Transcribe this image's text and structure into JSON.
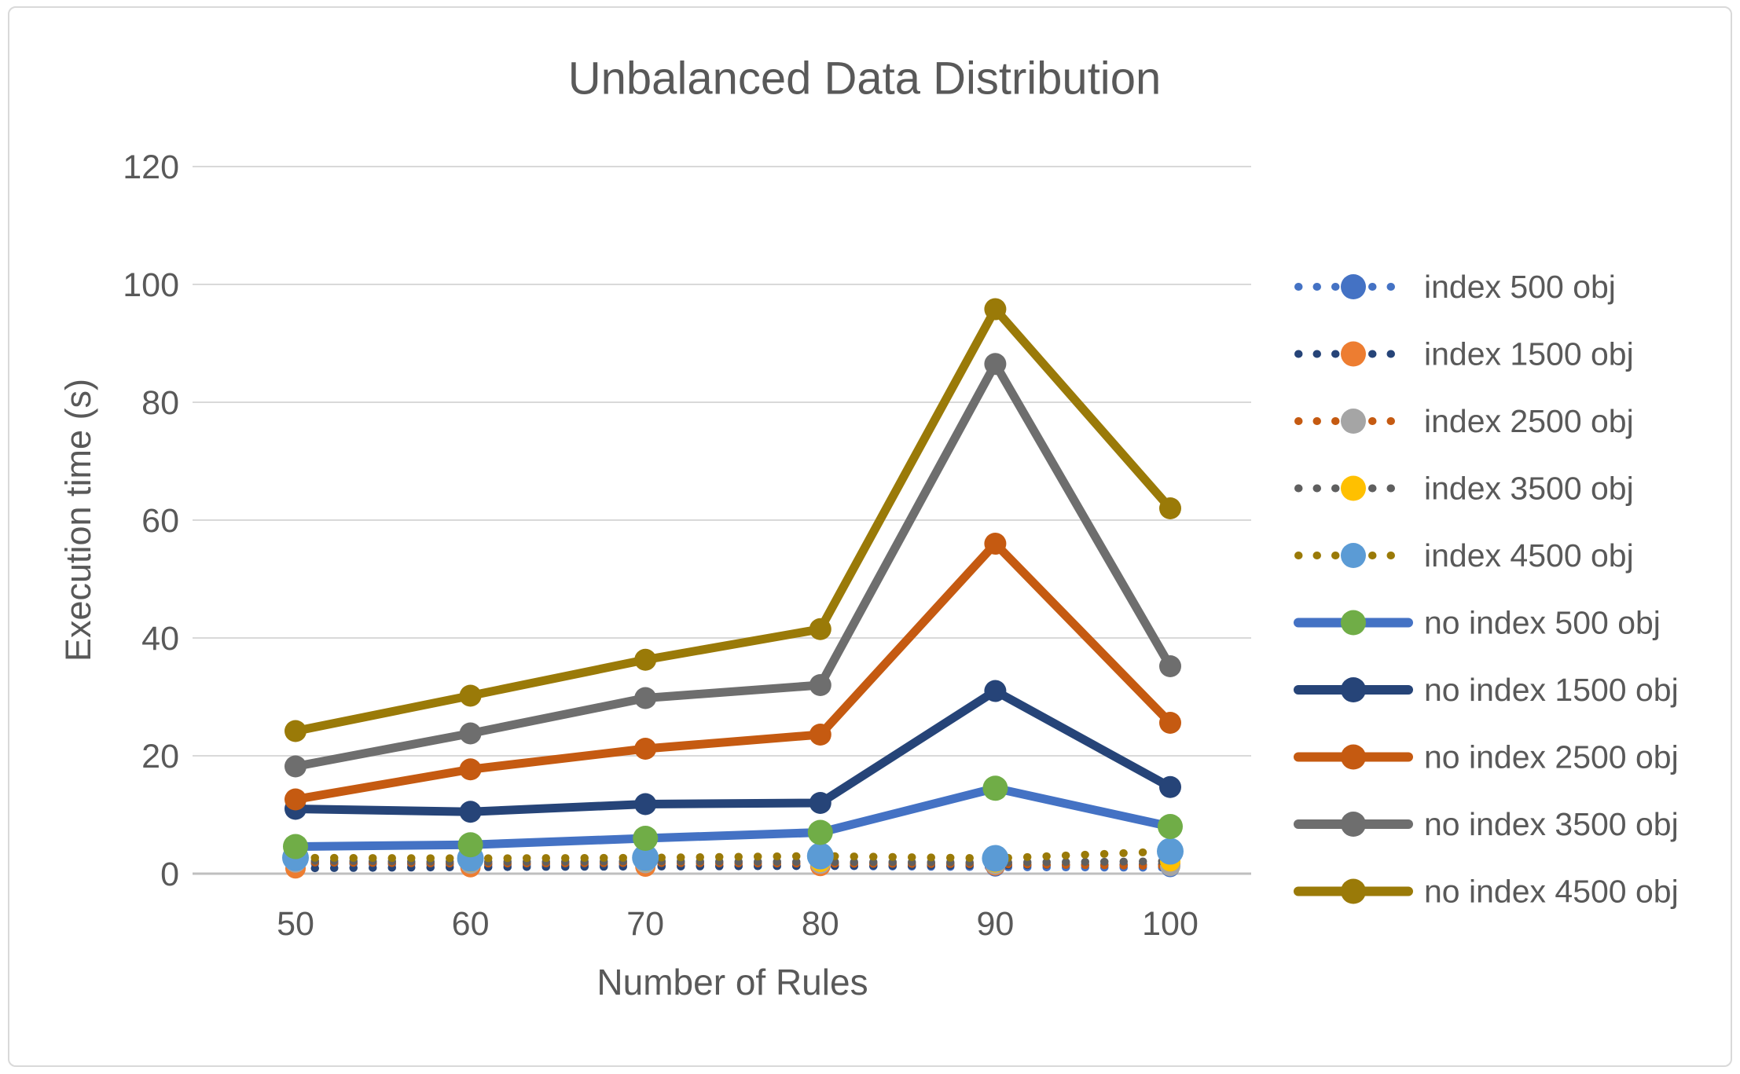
{
  "page": {
    "background": "#ffffff",
    "frame_border_color": "#d9d9d9"
  },
  "chart_data": {
    "type": "line",
    "title": "Unbalanced Data Distribution",
    "xlabel": "Number of Rules",
    "ylabel": "Execution time (s)",
    "x": [
      50,
      60,
      70,
      80,
      90,
      100
    ],
    "xlim": [
      50,
      100
    ],
    "ylim": [
      0,
      120
    ],
    "yticks": [
      0,
      20,
      40,
      60,
      80,
      100,
      120
    ],
    "grid": true,
    "gridline_color": "#d9d9d9",
    "axis_line_color": "#bfbfbf",
    "text_color": "#595959",
    "legend_position": "right",
    "series": [
      {
        "name": "index 500 obj",
        "style": "dotted",
        "line_color": "#4472C4",
        "marker_color": "#4472C4",
        "marker_r": 12,
        "values": [
          1.7,
          1.5,
          1.4,
          1.3,
          1.1,
          1.0
        ]
      },
      {
        "name": "index 1500 obj",
        "style": "dotted",
        "line_color": "#264478",
        "marker_color": "#ED7D31",
        "marker_r": 13,
        "values": [
          0.9,
          1.1,
          1.2,
          1.3,
          1.4,
          1.6
        ]
      },
      {
        "name": "index 2500 obj",
        "style": "dotted",
        "line_color": "#C55A11",
        "marker_color": "#A5A5A5",
        "marker_r": 13,
        "values": [
          1.9,
          1.7,
          1.8,
          1.7,
          1.6,
          1.3
        ]
      },
      {
        "name": "index 3500 obj",
        "style": "dotted",
        "line_color": "#5F5F5F",
        "marker_color": "#FFC000",
        "marker_r": 13,
        "values": [
          2.2,
          2.0,
          2.1,
          2.0,
          1.9,
          2.1
        ]
      },
      {
        "name": "index 4500 obj",
        "style": "dotted",
        "line_color": "#9A7A08",
        "marker_color": "#5B9BD5",
        "marker_r": 17,
        "values": [
          2.7,
          2.6,
          2.7,
          3.0,
          2.6,
          3.8
        ]
      },
      {
        "name": "no index 500 obj",
        "style": "solid",
        "line_color": "#4472C4",
        "marker_color": "#70AD47",
        "marker_r": 16,
        "values": [
          4.6,
          4.9,
          6.0,
          7.0,
          14.5,
          8.0
        ]
      },
      {
        "name": "no index 1500 obj",
        "style": "solid",
        "line_color": "#264478",
        "marker_color": "#264478",
        "marker_r": 14,
        "values": [
          11.0,
          10.5,
          11.8,
          12.0,
          31.0,
          14.7
        ]
      },
      {
        "name": "no index 2500 obj",
        "style": "solid",
        "line_color": "#C55A11",
        "marker_color": "#C55A11",
        "marker_r": 14,
        "values": [
          12.6,
          17.7,
          21.2,
          23.6,
          56.0,
          25.6
        ]
      },
      {
        "name": "no index 3500 obj",
        "style": "solid",
        "line_color": "#6E6E6E",
        "marker_color": "#6E6E6E",
        "marker_r": 14,
        "values": [
          18.2,
          23.8,
          29.8,
          32.0,
          86.5,
          35.2
        ]
      },
      {
        "name": "no index 4500 obj",
        "style": "solid",
        "line_color": "#9A7A08",
        "marker_color": "#9A7A08",
        "marker_r": 14,
        "values": [
          24.2,
          30.2,
          36.3,
          41.5,
          95.8,
          62.0
        ]
      }
    ]
  }
}
